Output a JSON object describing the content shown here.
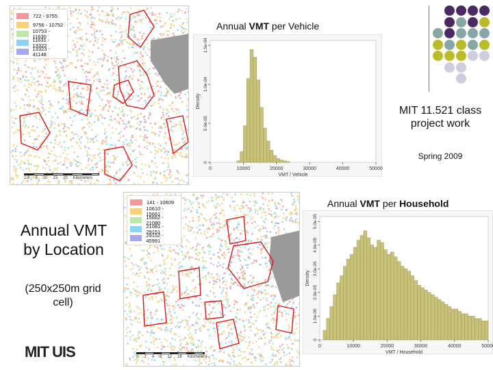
{
  "map_top": {
    "legend": [
      {
        "label": "722 - 9755",
        "color": "#f49a9a"
      },
      {
        "label": "9756 - 10752",
        "color": "#f7d27a"
      },
      {
        "label": "10753 - 11630",
        "color": "#bfe8a6"
      },
      {
        "label": "11631 - 13322",
        "color": "#8fd3f0"
      },
      {
        "label": "13323 - 41148",
        "color": "#a6a6f0"
      }
    ],
    "scale_labels": [
      "2.5",
      "5",
      "10",
      "15",
      "20",
      "Kilometers"
    ]
  },
  "map_bottom": {
    "legend": [
      {
        "label": "141 - 10609",
        "color": "#f49a9a"
      },
      {
        "label": "10610 - 15661",
        "color": "#f7d27a"
      },
      {
        "label": "15662 - 21080",
        "color": "#bfe8a6"
      },
      {
        "label": "21081 - 29151",
        "color": "#8fd3f0"
      },
      {
        "label": "29152 - 45991",
        "color": "#a6a6f0"
      }
    ],
    "scale_labels": [
      "0",
      "2",
      "4",
      "8",
      "12",
      "16",
      "Kilometers"
    ]
  },
  "title_vehicle": {
    "pre": "Annual ",
    "bold": "VMT",
    "post": " per Vehicle"
  },
  "title_household": {
    "pre": "Annual ",
    "bold": "VMT",
    "post": " per ",
    "bold2": "Household"
  },
  "side_title": "Annual VMT by Location",
  "side_subtitle": "(250x250m grid cell)",
  "project": {
    "line": "MIT 11.521 class project work",
    "date": "Spring 2009"
  },
  "logo_text": "MIT UIS",
  "colors": {
    "bar": "#c9c27a",
    "bar_edge": "#9d9650",
    "dot_purple": "#4b2a63",
    "dot_teal": "#87a6a6",
    "dot_olive": "#b9bb2a",
    "dot_lilac": "#cfcde0"
  },
  "chart_data": [
    {
      "type": "bar",
      "title": "Annual VMT per Vehicle",
      "xlabel": "VMT / Vehicle",
      "ylabel": "Density",
      "xlim": [
        0,
        50000
      ],
      "ylim": [
        0,
        0.00016
      ],
      "xticks": [
        "0",
        "10000",
        "20000",
        "30000",
        "40000",
        "50000"
      ],
      "yticks": [
        "0",
        "5.0e-05",
        "1.0e-04",
        "1.5e-04"
      ],
      "bin_start": 8000,
      "bin_width": 1000,
      "values": [
        2e-06,
        1.4e-05,
        4.8e-05,
        0.00011,
        0.000148,
        0.000138,
        0.000108,
        7.2e-05,
        4.5e-05,
        2.8e-05,
        1.6e-05,
        9e-06,
        5e-06,
        3e-06,
        2e-06,
        1e-06
      ]
    },
    {
      "type": "bar",
      "title": "Annual VMT per Household",
      "xlabel": "VMT / Household",
      "ylabel": "Density",
      "xlim": [
        0,
        50000
      ],
      "ylim": [
        0,
        5.2e-05
      ],
      "xticks": [
        "0",
        "10000",
        "20000",
        "30000",
        "40000",
        "50000"
      ],
      "yticks": [
        "0",
        "1.0e-05",
        "2.0e-05",
        "3.0e-05",
        "4.0e-05",
        "5.0e-05"
      ],
      "bin_start": 1000,
      "bin_width": 1000,
      "values": [
        4e-06,
        9e-06,
        1.4e-05,
        1.9e-05,
        2.4e-05,
        2.7e-05,
        3.1e-05,
        3.4e-05,
        3.6e-05,
        3.9e-05,
        4.2e-05,
        4.4e-05,
        4.6e-05,
        4.3e-05,
        4e-05,
        3.9e-05,
        4.2e-05,
        4.1e-05,
        3.8e-05,
        3.6e-05,
        3.7e-05,
        3.5e-05,
        3.3e-05,
        3.1e-05,
        3e-05,
        2.9e-05,
        2.7e-05,
        2.5e-05,
        2.3e-05,
        2.2e-05,
        2.1e-05,
        2e-05,
        1.9e-05,
        1.8e-05,
        1.7e-05,
        1.6e-05,
        1.5e-05,
        1.4e-05,
        1.3e-05,
        1.3e-05,
        1.2e-05,
        1.1e-05,
        1.1e-05,
        1e-05,
        1e-05,
        9e-06,
        9e-06,
        8e-06,
        8e-06
      ]
    }
  ]
}
